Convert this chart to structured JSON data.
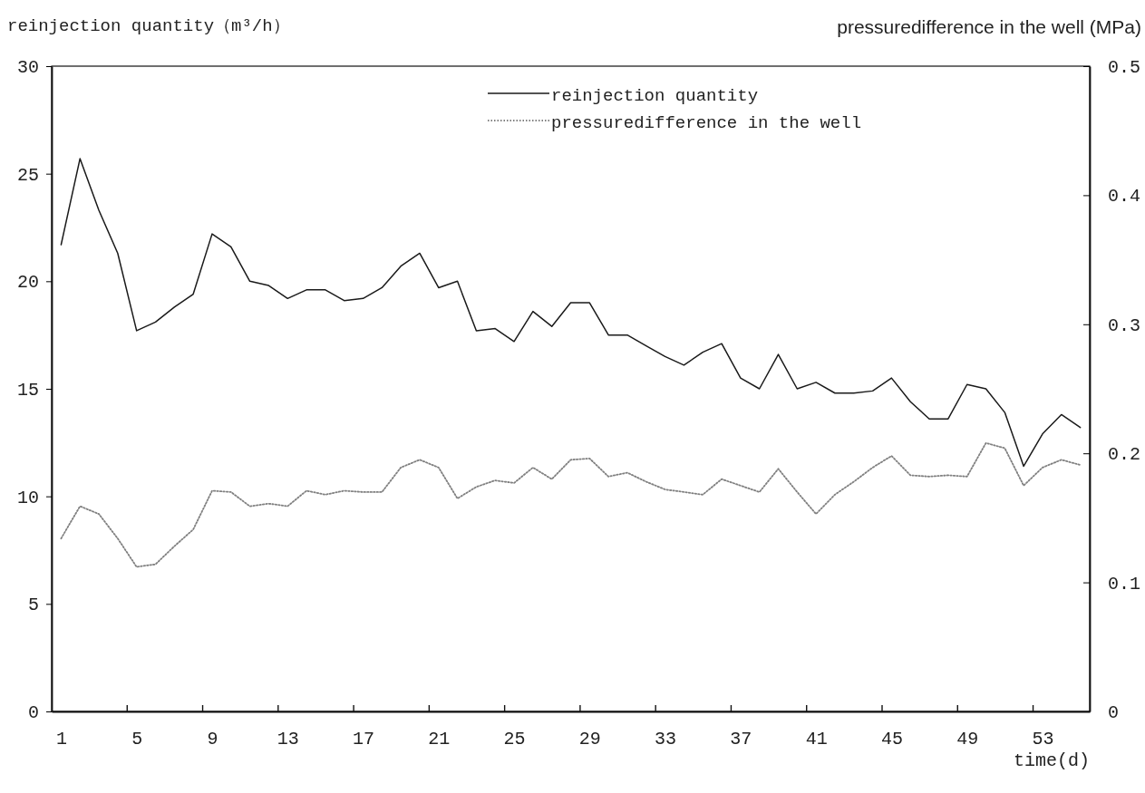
{
  "chart_data": {
    "type": "line",
    "xlabel": "time(d)",
    "ylabel": "reinjection quantity（m³/h）",
    "y2label": "pressuredifference in the well (MPa)",
    "categories": [
      "1",
      null,
      null,
      null,
      "5",
      null,
      null,
      null,
      "9",
      null,
      null,
      null,
      "13",
      null,
      null,
      null,
      "17",
      null,
      null,
      null,
      "21",
      null,
      null,
      null,
      "25",
      null,
      null,
      null,
      "29",
      null,
      null,
      null,
      "33",
      null,
      null,
      null,
      "37",
      null,
      null,
      null,
      "41",
      null,
      null,
      null,
      "45",
      null,
      null,
      null,
      "49",
      null,
      null,
      null,
      "53",
      null,
      null
    ],
    "ylim": [
      0,
      30
    ],
    "yticks": [
      0,
      5,
      10,
      15,
      20,
      25,
      30
    ],
    "y2lim": [
      0,
      0.5
    ],
    "y2ticks": [
      0,
      0.1,
      0.2,
      0.3,
      0.4,
      0.5
    ],
    "legend": "top",
    "marker": "none",
    "series": [
      {
        "name": "reinjection quantity",
        "color": "#1a1a1a",
        "line_style": "solid",
        "values": [
          21.7,
          25.7,
          23.3,
          21.3,
          17.7,
          18.1,
          18.8,
          19.4,
          22.2,
          21.6,
          20.0,
          19.8,
          19.2,
          19.6,
          19.6,
          19.1,
          19.2,
          19.7,
          20.7,
          21.3,
          19.7,
          20.0,
          17.7,
          17.8,
          17.2,
          18.6,
          17.9,
          19.0,
          19.0,
          17.5,
          17.5,
          17.0,
          16.5,
          16.1,
          16.7,
          17.1,
          15.5,
          15.0,
          16.6,
          15.0,
          15.3,
          14.8,
          14.8,
          14.9,
          15.5,
          14.4,
          13.6,
          13.6,
          15.2,
          15.0,
          13.9,
          11.4,
          12.9,
          13.8,
          13.2
        ]
      },
      {
        "name": "pressuredifference in the well",
        "color": "#808080",
        "line_style": "dotted",
        "axis": "y2",
        "values": [
          0.134,
          0.159,
          0.153,
          0.134,
          0.112,
          0.114,
          0.128,
          0.141,
          0.171,
          0.17,
          0.159,
          0.161,
          0.159,
          0.171,
          0.168,
          0.171,
          0.17,
          0.17,
          0.189,
          0.195,
          0.189,
          0.165,
          0.174,
          0.179,
          0.177,
          0.189,
          0.18,
          0.195,
          0.196,
          0.182,
          0.185,
          0.178,
          0.172,
          0.17,
          0.168,
          0.18,
          0.175,
          0.17,
          0.188,
          0.17,
          0.153,
          0.168,
          0.178,
          0.189,
          0.198,
          0.183,
          0.182,
          0.183,
          0.182,
          0.208,
          0.204,
          0.175,
          0.189,
          0.195,
          0.191
        ]
      }
    ]
  }
}
